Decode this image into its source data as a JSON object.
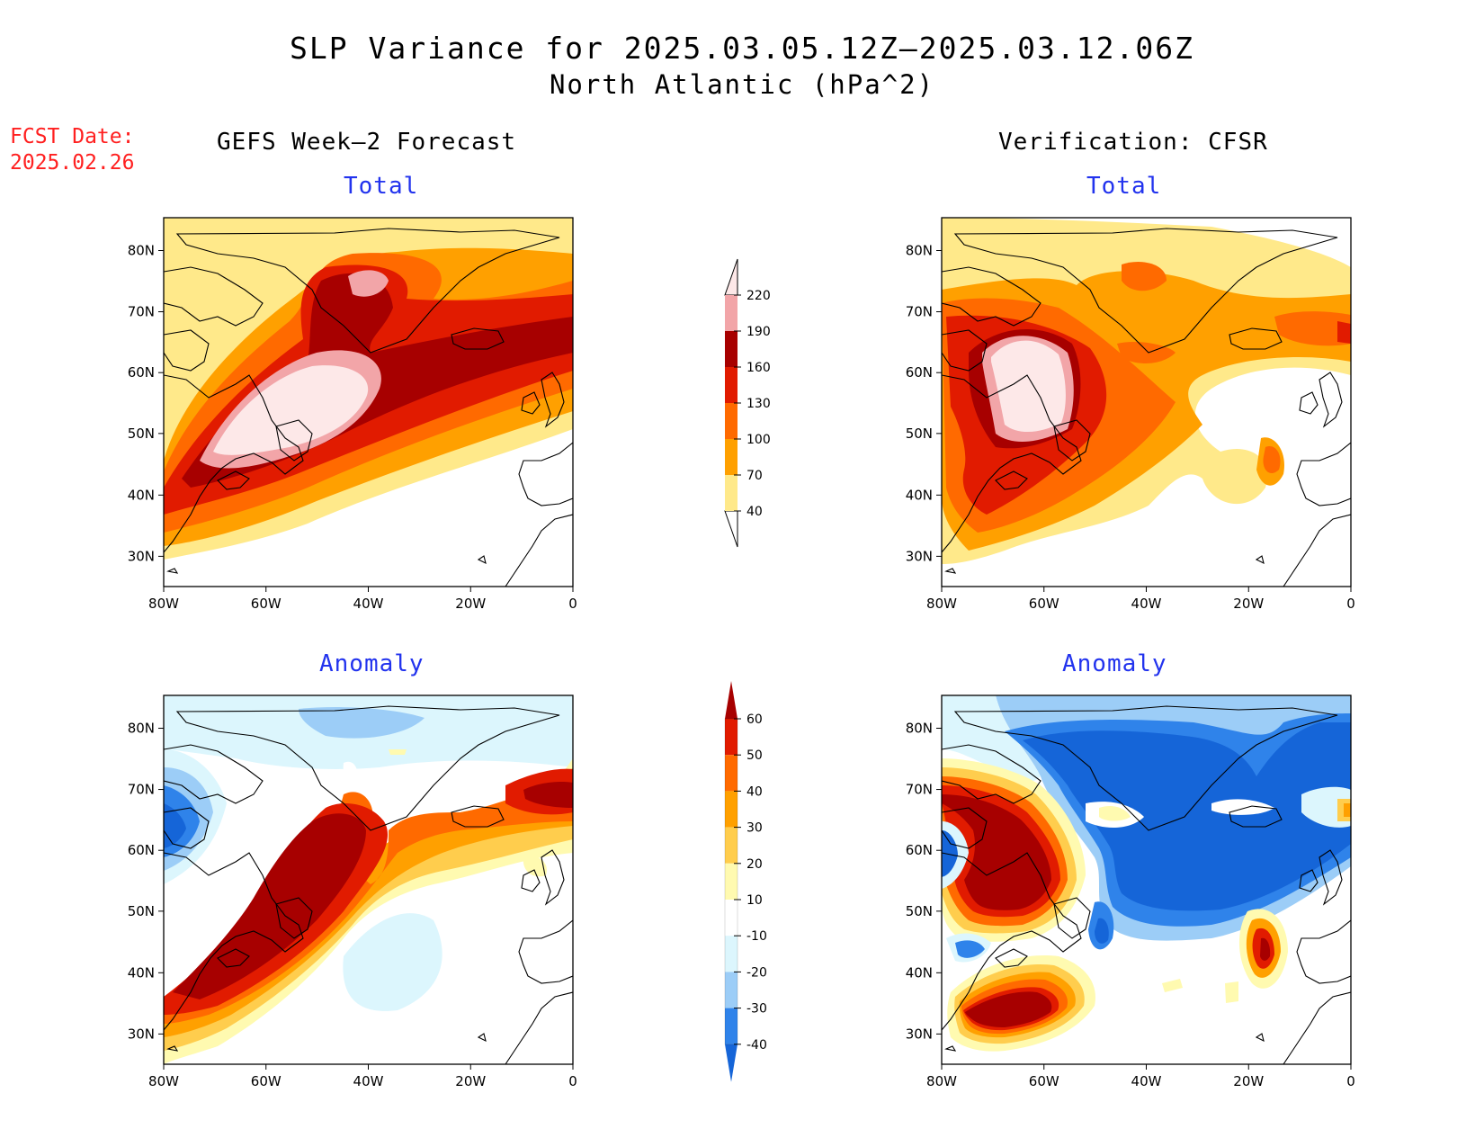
{
  "title": {
    "line1": "SLP Variance for 2025.03.05.12Z—2025.03.12.06Z",
    "line2": "North Atlantic (hPa^2)"
  },
  "forecast_date": {
    "label": "FCST Date:",
    "value": "2025.02.26"
  },
  "columns": {
    "left": "GEFS Week—2 Forecast",
    "right": "Verification: CFSR"
  },
  "panels": {
    "total_label": "Total",
    "anomaly_label": "Anomaly"
  },
  "axes": {
    "lat_ticks": [
      "80N",
      "70N",
      "60N",
      "50N",
      "40N",
      "30N"
    ],
    "lon_ticks": [
      "80W",
      "60W",
      "40W",
      "20W",
      "0"
    ]
  },
  "colorbars": {
    "total": {
      "levels": [
        "40",
        "70",
        "100",
        "130",
        "160",
        "190",
        "220"
      ],
      "colors": [
        "#ffe98a",
        "#ffa000",
        "#ff6a00",
        "#e11b00",
        "#a70000",
        "#f2a5a8",
        "#fde8e8"
      ]
    },
    "anomaly": {
      "levels": [
        "-40",
        "-30",
        "-20",
        "-10",
        "10",
        "20",
        "30",
        "40",
        "50",
        "60"
      ],
      "colors": [
        "#1565d8",
        "#2f83ea",
        "#9ccdf7",
        "#dcf6fd",
        "#ffffff",
        "#fffab0",
        "#ffcd4d",
        "#ffa000",
        "#ff6a00",
        "#e11b00",
        "#a70000"
      ]
    }
  }
}
